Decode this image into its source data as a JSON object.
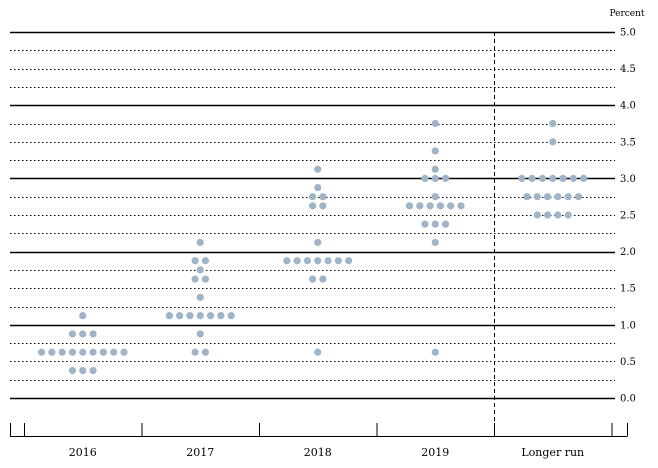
{
  "chart_data": {
    "type": "scatter",
    "unit_label": "Percent",
    "title": "",
    "xlabel": "",
    "ylabel": "",
    "ylim": [
      0.0,
      5.0
    ],
    "ytick_step": 0.5,
    "y_ticks": [
      "0.0",
      "0.5",
      "1.0",
      "1.5",
      "2.0",
      "2.5",
      "3.0",
      "3.5",
      "4.0",
      "4.5",
      "5.0"
    ],
    "categories": [
      "2016",
      "2017",
      "2018",
      "2019",
      "Longer run"
    ],
    "grid": "solid lines at whole numbers, dotted lines at every 0.25",
    "separator_before_category": "Longer run",
    "dot_color": "#9fb4c7",
    "series": [
      {
        "values": [
          {
            "y": 1.125,
            "count": 1
          },
          {
            "y": 0.875,
            "count": 3
          },
          {
            "y": 0.625,
            "count": 9
          },
          {
            "y": 0.375,
            "count": 3
          }
        ]
      },
      {
        "values": [
          {
            "y": 2.125,
            "count": 1
          },
          {
            "y": 1.875,
            "count": 2
          },
          {
            "y": 1.75,
            "count": 1
          },
          {
            "y": 1.625,
            "count": 2
          },
          {
            "y": 1.375,
            "count": 1
          },
          {
            "y": 1.125,
            "count": 7
          },
          {
            "y": 0.875,
            "count": 1
          },
          {
            "y": 0.625,
            "count": 2
          }
        ]
      },
      {
        "values": [
          {
            "y": 3.125,
            "count": 1
          },
          {
            "y": 2.875,
            "count": 1
          },
          {
            "y": 2.75,
            "count": 2
          },
          {
            "y": 2.625,
            "count": 2
          },
          {
            "y": 2.125,
            "count": 1
          },
          {
            "y": 1.875,
            "count": 7
          },
          {
            "y": 1.625,
            "count": 2
          },
          {
            "y": 0.625,
            "count": 1
          }
        ]
      },
      {
        "values": [
          {
            "y": 3.75,
            "count": 1
          },
          {
            "y": 3.375,
            "count": 1
          },
          {
            "y": 3.125,
            "count": 1
          },
          {
            "y": 3.0,
            "count": 3
          },
          {
            "y": 2.75,
            "count": 1
          },
          {
            "y": 2.625,
            "count": 6
          },
          {
            "y": 2.375,
            "count": 3
          },
          {
            "y": 2.125,
            "count": 1
          },
          {
            "y": 0.625,
            "count": 1
          }
        ]
      },
      {
        "values": [
          {
            "y": 3.75,
            "count": 1
          },
          {
            "y": 3.5,
            "count": 1
          },
          {
            "y": 3.0,
            "count": 7
          },
          {
            "y": 2.75,
            "count": 6
          },
          {
            "y": 2.5,
            "count": 4
          }
        ]
      }
    ]
  }
}
